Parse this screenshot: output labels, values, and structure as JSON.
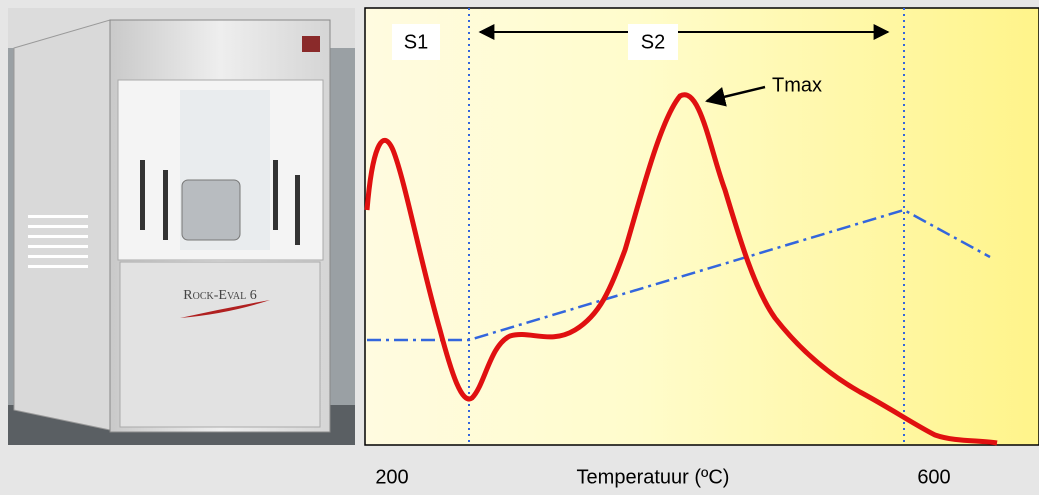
{
  "photo": {
    "brand": "Rock-Eval 6"
  },
  "diagram": {
    "peaks": {
      "s1": "S1",
      "s2": "S2",
      "tmax": "Tmax"
    },
    "axis": {
      "start": "200",
      "label": "Temperatuur (ºC)",
      "end": "600"
    }
  }
}
